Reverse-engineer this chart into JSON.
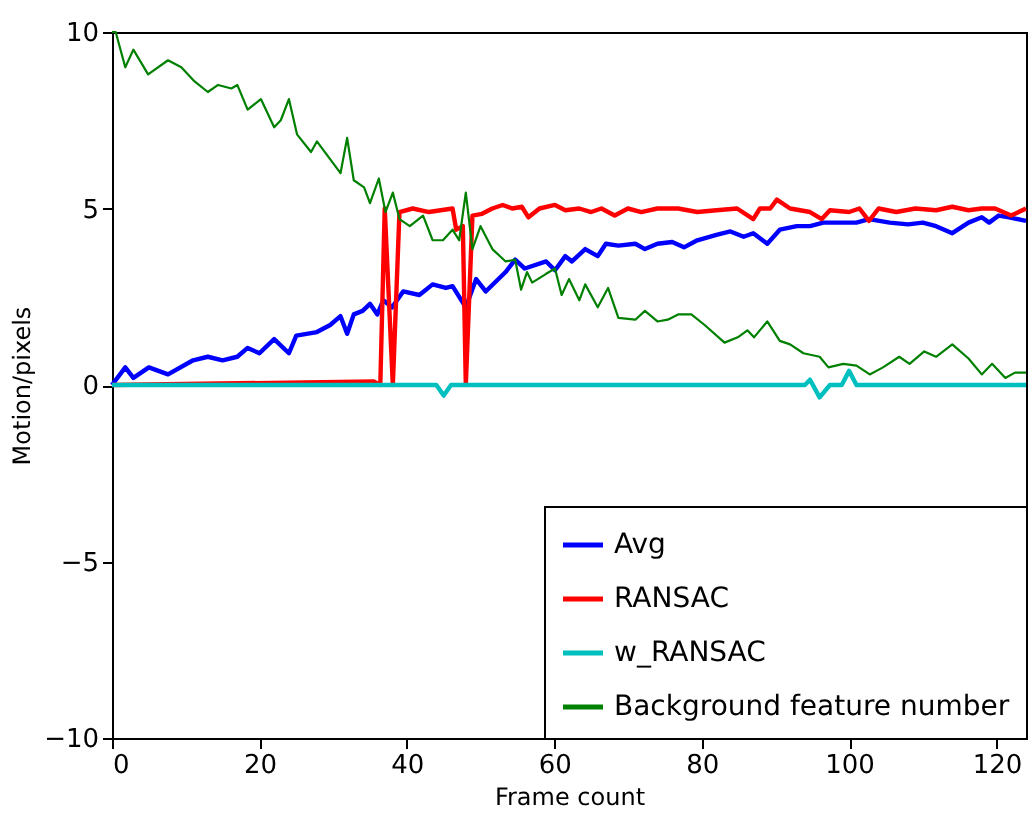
{
  "chart_data": {
    "type": "line",
    "xlabel": "Frame count",
    "ylabel": "Motion/pixels",
    "xlim": [
      0,
      124
    ],
    "xticks": [
      0,
      20,
      40,
      60,
      80,
      100,
      120
    ],
    "ylim": [
      -10,
      10
    ],
    "yticks": [
      {
        "value": -10,
        "label": "−10"
      },
      {
        "value": -5,
        "label": "−5"
      },
      0,
      5,
      10
    ],
    "grid": false,
    "legend": "bottom right",
    "line_style": "solid",
    "marker": "none",
    "series": [
      {
        "name": "Avg",
        "color": "#0000ff",
        "x": [
          0,
          1.8,
          2.9,
          5,
          7.6,
          11,
          13,
          15,
          17,
          18.4,
          20,
          22,
          24,
          25,
          27.8,
          29.6,
          31,
          31.9,
          32.8,
          34,
          35,
          36,
          36.8,
          38,
          39.5,
          41.7,
          43.5,
          45.3,
          46.2,
          48,
          49.4,
          50.7,
          53.4,
          54.7,
          56,
          58.9,
          60.1,
          61.5,
          62.4,
          64.2,
          65.9,
          67,
          68.7,
          71,
          72.3,
          74,
          76,
          77.6,
          79.4,
          82,
          83.9,
          85.7,
          87,
          88.9,
          90.6,
          92.9,
          94.7,
          96.5,
          98.3,
          101,
          102.7,
          105.5,
          108,
          110,
          111.8,
          114,
          116.2,
          118,
          119,
          120.3,
          121.7,
          124
        ],
        "values": [
          0,
          0.5,
          0.2,
          0.5,
          0.3,
          0.7,
          0.8,
          0.7,
          0.8,
          1.05,
          0.9,
          1.3,
          0.9,
          1.4,
          1.5,
          1.7,
          1.95,
          1.45,
          2.0,
          2.1,
          2.3,
          2.0,
          2.4,
          2.2,
          2.65,
          2.55,
          2.85,
          2.75,
          2.8,
          2.2,
          3.0,
          2.65,
          3.2,
          3.55,
          3.3,
          3.5,
          3.25,
          3.65,
          3.5,
          3.85,
          3.65,
          4.0,
          3.95,
          4.0,
          3.85,
          4.0,
          4.05,
          3.9,
          4.1,
          4.25,
          4.35,
          4.2,
          4.3,
          4.0,
          4.4,
          4.5,
          4.5,
          4.6,
          4.6,
          4.6,
          4.7,
          4.6,
          4.55,
          4.6,
          4.5,
          4.3,
          4.6,
          4.75,
          4.6,
          4.8,
          4.75,
          4.65
        ]
      },
      {
        "name": "RANSAC",
        "color": "#ff0000",
        "x": [
          0,
          35.5,
          36.4,
          37,
          38.1,
          39,
          40.8,
          43,
          46.2,
          46.7,
          47.6,
          48,
          48.9,
          50.2,
          51.6,
          53,
          54.3,
          55.6,
          56.5,
          58,
          60.1,
          61.5,
          63.4,
          65,
          66.4,
          68.2,
          70,
          71.8,
          74,
          76.8,
          79.4,
          82,
          84.8,
          87,
          87.9,
          89.3,
          90.2,
          92,
          94.7,
          96.3,
          97.4,
          100,
          101.4,
          102.7,
          104,
          106.4,
          109,
          111.8,
          114,
          116.2,
          118,
          119.8,
          122,
          124
        ],
        "values": [
          0,
          0.1,
          0,
          5.0,
          0,
          4.9,
          5.0,
          4.9,
          5.0,
          4.4,
          4.5,
          0,
          4.8,
          4.85,
          5.0,
          5.1,
          5.0,
          5.05,
          4.75,
          5.0,
          5.1,
          4.95,
          5.0,
          4.9,
          5.0,
          4.8,
          5.0,
          4.9,
          5.0,
          5.0,
          4.9,
          4.95,
          5.0,
          4.7,
          5.0,
          5.0,
          5.25,
          5.0,
          4.9,
          4.7,
          4.95,
          4.9,
          5.0,
          4.65,
          5.0,
          4.9,
          5.0,
          4.95,
          5.05,
          4.95,
          5.0,
          5.0,
          4.8,
          5.0
        ]
      },
      {
        "name": "w_RANSAC",
        "color": "#00bfbf",
        "x": [
          0,
          44,
          45,
          46,
          94,
          94.7,
          96,
          97.4,
          99,
          100,
          101,
          124
        ],
        "values": [
          0,
          0,
          -0.3,
          0,
          0,
          0.15,
          -0.35,
          0,
          0,
          0.4,
          0,
          0
        ]
      },
      {
        "name": "Background feature number",
        "color": "#008000",
        "x": [
          0,
          0.5,
          1.8,
          2.9,
          4.9,
          7.6,
          9.4,
          11.2,
          13,
          14.4,
          16.2,
          17,
          18.4,
          20.2,
          22,
          22.9,
          24,
          25.1,
          27,
          27.8,
          31,
          31.9,
          32.8,
          34.2,
          35,
          36.2,
          37.1,
          38.1,
          39,
          40.4,
          42.2,
          43.5,
          44.9,
          46.2,
          47.1,
          48,
          48.9,
          50,
          51.6,
          53.4,
          54.7,
          55.5,
          56.3,
          57,
          58.9,
          60.1,
          61,
          62,
          63.4,
          64.2,
          65.9,
          67.3,
          68.7,
          71,
          72.3,
          74,
          75.4,
          76.8,
          78.6,
          80.4,
          83.1,
          84.9,
          86.2,
          87.1,
          88.9,
          90.6,
          92,
          93.8,
          96,
          97.2,
          99.2,
          101,
          102.8,
          104.6,
          106.8,
          108.2,
          110.2,
          111.8,
          114,
          116.2,
          118,
          119.4,
          121.2,
          122.5,
          124
        ],
        "values": [
          10,
          10,
          9.0,
          9.5,
          8.8,
          9.2,
          9.0,
          8.6,
          8.3,
          8.5,
          8.4,
          8.5,
          7.8,
          8.1,
          7.3,
          7.5,
          8.1,
          7.1,
          6.6,
          6.9,
          6.0,
          7.0,
          5.8,
          5.6,
          5.15,
          5.85,
          4.9,
          5.45,
          4.7,
          4.5,
          4.8,
          4.1,
          4.1,
          4.4,
          4.1,
          5.45,
          3.85,
          4.5,
          3.85,
          3.5,
          3.55,
          2.7,
          3.2,
          2.9,
          3.15,
          3.3,
          2.55,
          3.0,
          2.4,
          2.85,
          2.2,
          2.75,
          1.9,
          1.85,
          2.1,
          1.8,
          1.85,
          2.0,
          2.0,
          1.7,
          1.2,
          1.35,
          1.55,
          1.35,
          1.8,
          1.25,
          1.15,
          0.9,
          0.8,
          0.5,
          0.6,
          0.55,
          0.3,
          0.5,
          0.8,
          0.6,
          0.95,
          0.8,
          1.15,
          0.75,
          0.3,
          0.6,
          0.2,
          0.35,
          0.35
        ]
      }
    ]
  }
}
